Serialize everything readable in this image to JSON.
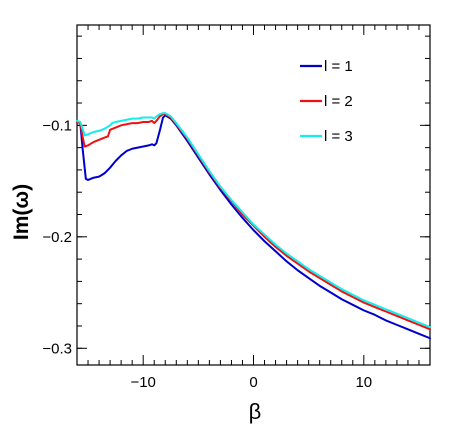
{
  "chart_data": {
    "type": "line",
    "title": "",
    "xlabel": "β",
    "ylabel": "Im(ω)",
    "xlim": [
      -16,
      16
    ],
    "ylim": [
      -0.315,
      -0.01
    ],
    "x_ticks": [
      {
        "value": -10,
        "label": "−10"
      },
      {
        "value": 0,
        "label": "0"
      },
      {
        "value": 10,
        "label": "10"
      }
    ],
    "y_ticks": [
      {
        "value": -0.1,
        "label": "−0.1"
      },
      {
        "value": -0.2,
        "label": "−0.2"
      },
      {
        "value": -0.3,
        "label": "−0.3"
      }
    ],
    "legend_position": "top-right",
    "grid": false,
    "series": [
      {
        "name": "l = 1",
        "color": "#0000cc",
        "points": [
          [
            -16,
            -0.097
          ],
          [
            -15.7,
            -0.098
          ],
          [
            -15.5,
            -0.12
          ],
          [
            -15.2,
            -0.148
          ],
          [
            -15,
            -0.149
          ],
          [
            -14.5,
            -0.147
          ],
          [
            -14,
            -0.146
          ],
          [
            -13.5,
            -0.143
          ],
          [
            -13,
            -0.138
          ],
          [
            -12.5,
            -0.132
          ],
          [
            -12,
            -0.127
          ],
          [
            -11.5,
            -0.123
          ],
          [
            -11,
            -0.121
          ],
          [
            -10.5,
            -0.12
          ],
          [
            -10,
            -0.119
          ],
          [
            -9.5,
            -0.118
          ],
          [
            -9.2,
            -0.117
          ],
          [
            -9,
            -0.118
          ],
          [
            -8.8,
            -0.116
          ],
          [
            -8.5,
            -0.105
          ],
          [
            -8.2,
            -0.093
          ],
          [
            -8,
            -0.091
          ],
          [
            -7.5,
            -0.094
          ],
          [
            -7,
            -0.1
          ],
          [
            -6,
            -0.114
          ],
          [
            -5,
            -0.129
          ],
          [
            -4,
            -0.144
          ],
          [
            -3,
            -0.158
          ],
          [
            -2,
            -0.171
          ],
          [
            -1,
            -0.183
          ],
          [
            0,
            -0.194
          ],
          [
            1,
            -0.204
          ],
          [
            2,
            -0.213
          ],
          [
            3,
            -0.222
          ],
          [
            4,
            -0.23
          ],
          [
            5,
            -0.237
          ],
          [
            6,
            -0.244
          ],
          [
            7,
            -0.25
          ],
          [
            8,
            -0.256
          ],
          [
            9,
            -0.261
          ],
          [
            10,
            -0.266
          ],
          [
            11,
            -0.27
          ],
          [
            12,
            -0.275
          ],
          [
            13,
            -0.279
          ],
          [
            14,
            -0.283
          ],
          [
            15,
            -0.287
          ],
          [
            16,
            -0.291
          ]
        ]
      },
      {
        "name": "l = 2",
        "color": "#ee1111",
        "points": [
          [
            -16,
            -0.097
          ],
          [
            -15.7,
            -0.098
          ],
          [
            -15.5,
            -0.11
          ],
          [
            -15.3,
            -0.119
          ],
          [
            -15,
            -0.118
          ],
          [
            -14.5,
            -0.115
          ],
          [
            -14,
            -0.113
          ],
          [
            -13.5,
            -0.111
          ],
          [
            -13.2,
            -0.11
          ],
          [
            -13,
            -0.104
          ],
          [
            -12.5,
            -0.102
          ],
          [
            -12,
            -0.1
          ],
          [
            -11.5,
            -0.099
          ],
          [
            -11,
            -0.098
          ],
          [
            -10.5,
            -0.098
          ],
          [
            -10,
            -0.097
          ],
          [
            -9.5,
            -0.097
          ],
          [
            -9.2,
            -0.096
          ],
          [
            -9,
            -0.098
          ],
          [
            -8.8,
            -0.096
          ],
          [
            -8.5,
            -0.092
          ],
          [
            -8.2,
            -0.09
          ],
          [
            -8,
            -0.09
          ],
          [
            -7.5,
            -0.093
          ],
          [
            -7,
            -0.099
          ],
          [
            -6,
            -0.112
          ],
          [
            -5,
            -0.127
          ],
          [
            -4,
            -0.142
          ],
          [
            -3,
            -0.156
          ],
          [
            -2,
            -0.168
          ],
          [
            -1,
            -0.18
          ],
          [
            0,
            -0.19
          ],
          [
            1,
            -0.2
          ],
          [
            2,
            -0.209
          ],
          [
            3,
            -0.217
          ],
          [
            4,
            -0.224
          ],
          [
            5,
            -0.231
          ],
          [
            6,
            -0.237
          ],
          [
            7,
            -0.243
          ],
          [
            8,
            -0.249
          ],
          [
            9,
            -0.254
          ],
          [
            10,
            -0.259
          ],
          [
            11,
            -0.263
          ],
          [
            12,
            -0.267
          ],
          [
            13,
            -0.271
          ],
          [
            14,
            -0.275
          ],
          [
            15,
            -0.279
          ],
          [
            16,
            -0.283
          ]
        ]
      },
      {
        "name": "l = 3",
        "color": "#11eeee",
        "points": [
          [
            -16,
            -0.096
          ],
          [
            -15.7,
            -0.097
          ],
          [
            -15.5,
            -0.103
          ],
          [
            -15.3,
            -0.109
          ],
          [
            -15,
            -0.108
          ],
          [
            -14.5,
            -0.106
          ],
          [
            -14,
            -0.105
          ],
          [
            -13.5,
            -0.103
          ],
          [
            -13,
            -0.1
          ],
          [
            -12.8,
            -0.098
          ],
          [
            -12.5,
            -0.097
          ],
          [
            -12,
            -0.096
          ],
          [
            -11.5,
            -0.095
          ],
          [
            -11,
            -0.094
          ],
          [
            -10.5,
            -0.094
          ],
          [
            -10,
            -0.093
          ],
          [
            -9.5,
            -0.093
          ],
          [
            -9.2,
            -0.093
          ],
          [
            -9,
            -0.094
          ],
          [
            -8.8,
            -0.092
          ],
          [
            -8.5,
            -0.09
          ],
          [
            -8.2,
            -0.089
          ],
          [
            -8,
            -0.089
          ],
          [
            -7.5,
            -0.092
          ],
          [
            -7,
            -0.098
          ],
          [
            -6,
            -0.111
          ],
          [
            -5,
            -0.126
          ],
          [
            -4,
            -0.141
          ],
          [
            -3,
            -0.155
          ],
          [
            -2,
            -0.167
          ],
          [
            -1,
            -0.178
          ],
          [
            0,
            -0.189
          ],
          [
            1,
            -0.198
          ],
          [
            2,
            -0.207
          ],
          [
            3,
            -0.215
          ],
          [
            4,
            -0.222
          ],
          [
            5,
            -0.229
          ],
          [
            6,
            -0.235
          ],
          [
            7,
            -0.241
          ],
          [
            8,
            -0.247
          ],
          [
            9,
            -0.252
          ],
          [
            10,
            -0.257
          ],
          [
            11,
            -0.261
          ],
          [
            12,
            -0.265
          ],
          [
            13,
            -0.269
          ],
          [
            14,
            -0.273
          ],
          [
            15,
            -0.277
          ],
          [
            16,
            -0.281
          ]
        ]
      }
    ]
  }
}
